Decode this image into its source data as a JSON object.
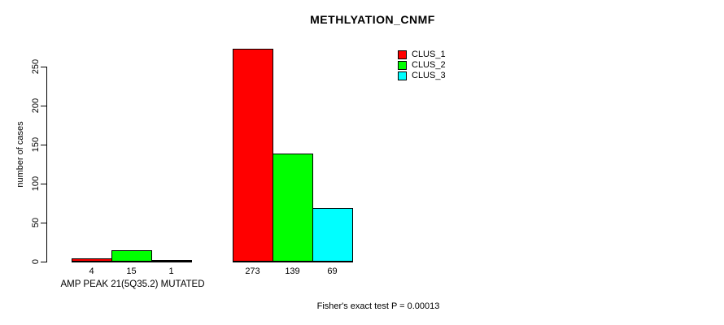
{
  "chart_data": {
    "type": "bar",
    "title": "METHLYATION_CNMF",
    "xlabel": "",
    "ylabel": "number of cases",
    "ylim": [
      0,
      275
    ],
    "yticks": [
      0,
      50,
      100,
      150,
      200,
      250
    ],
    "grid": false,
    "legend_position": "top-right",
    "categories": [
      "AMP PEAK 21(5Q35.2) MUTATED",
      ""
    ],
    "series": [
      {
        "name": "CLUS_1",
        "color": "#ff0000",
        "values": [
          4,
          273
        ]
      },
      {
        "name": "CLUS_2",
        "color": "#00ff00",
        "values": [
          15,
          139
        ]
      },
      {
        "name": "CLUS_3",
        "color": "#00ffff",
        "values": [
          1,
          69
        ]
      }
    ],
    "bar_value_labels": [
      [
        4,
        15,
        1
      ],
      [
        273,
        139,
        69
      ]
    ],
    "annotation": "Fisher's exact test P = 0.00013"
  },
  "colors": {
    "axis": "#000000",
    "background": "#ffffff"
  }
}
